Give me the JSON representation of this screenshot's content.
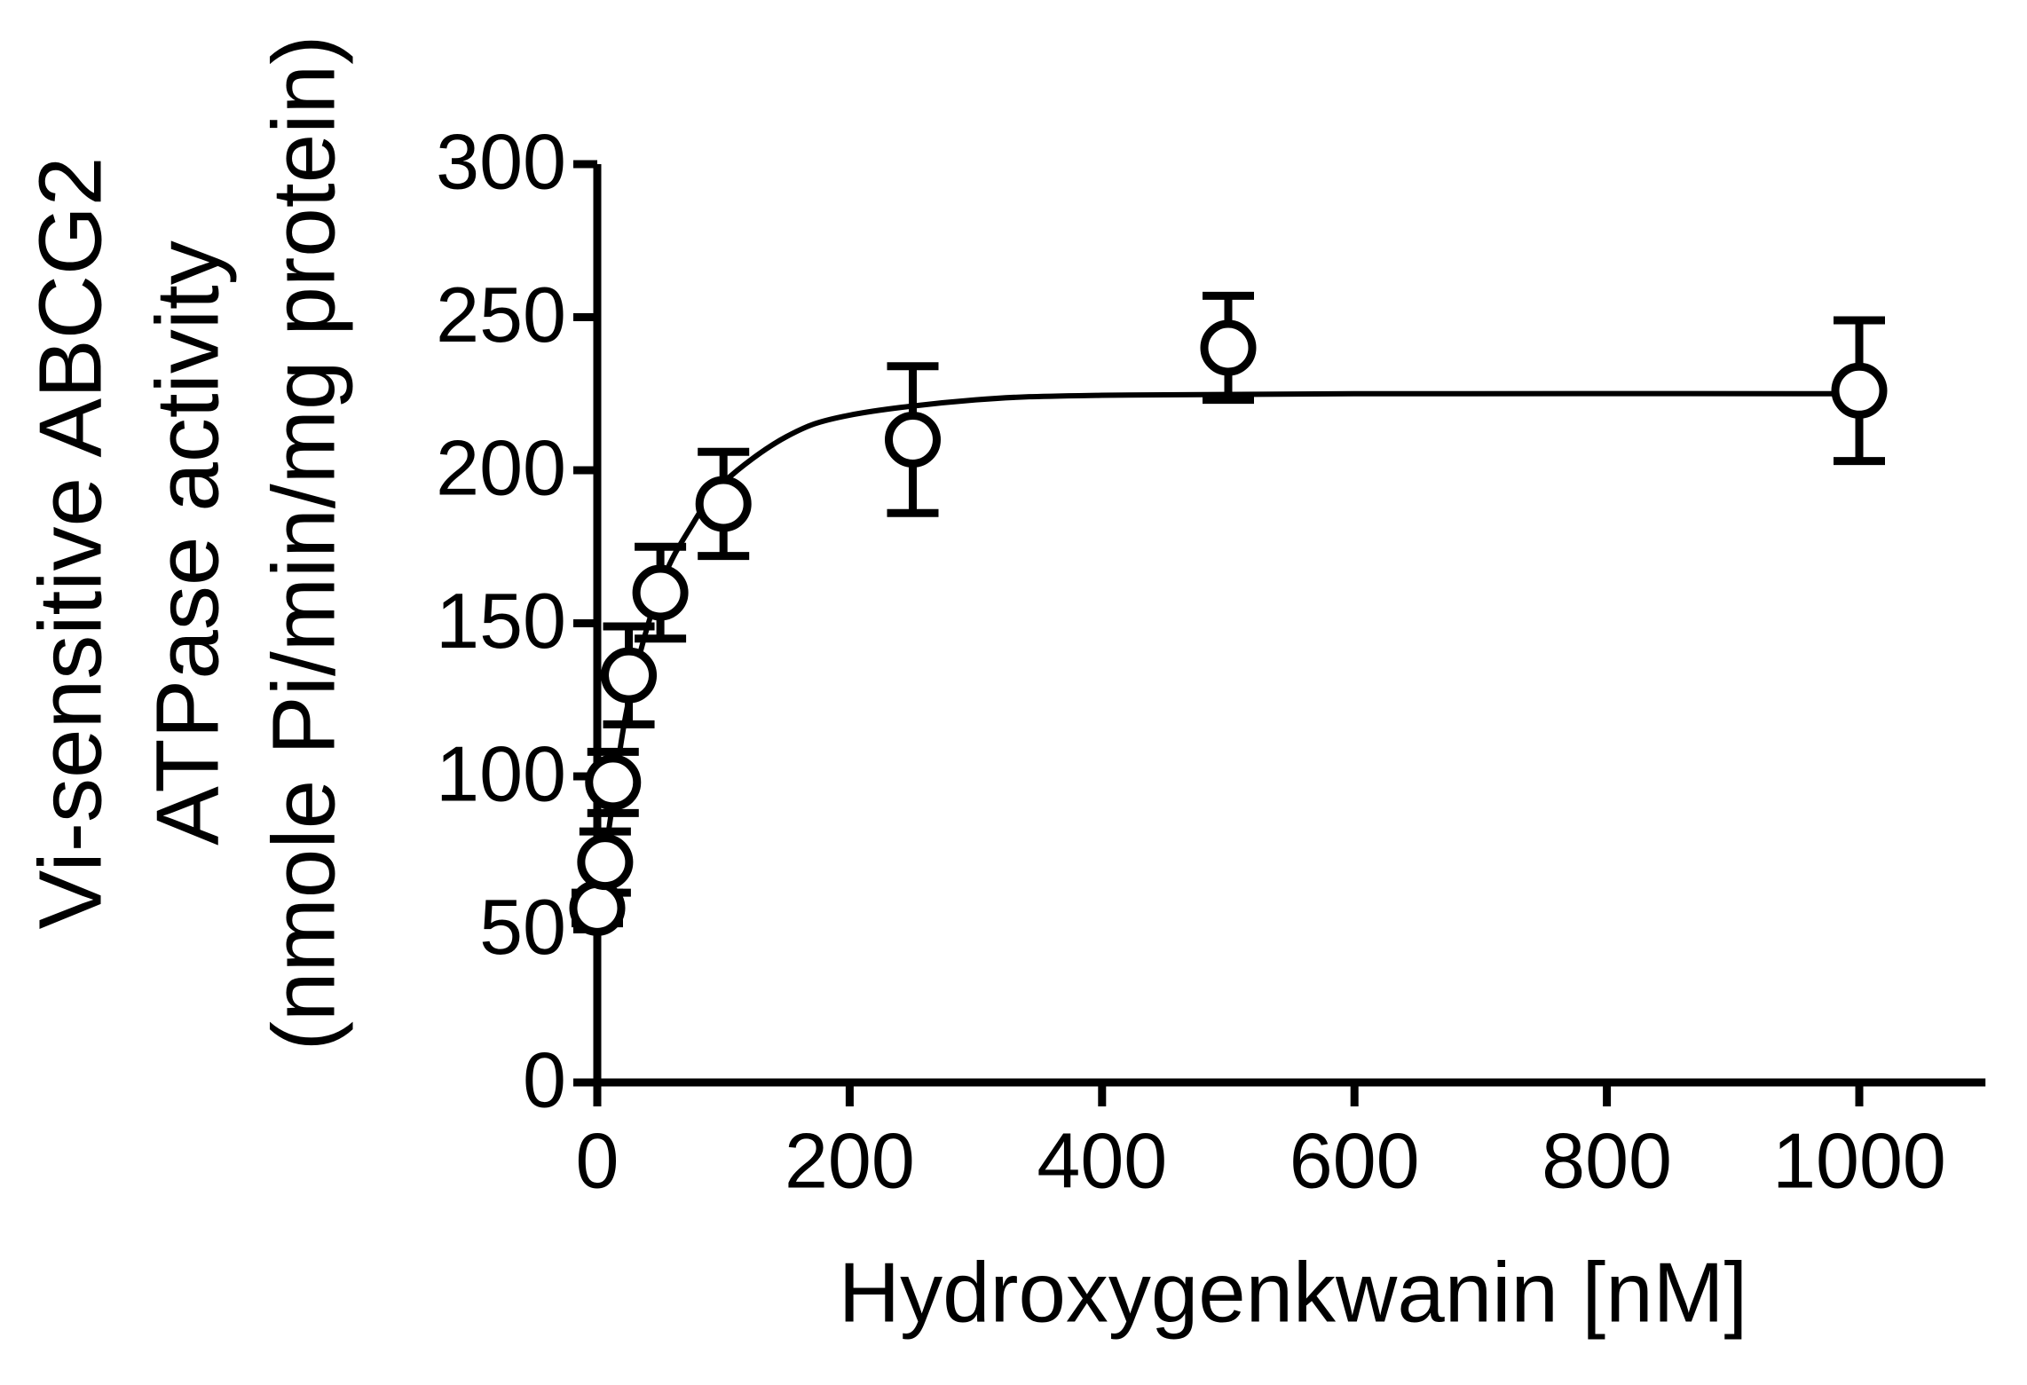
{
  "chart_data": {
    "type": "scatter",
    "x_label": "Hydroxygenkwanin [nM]",
    "y_label": [
      "Vi-sensitive ABCG2",
      "ATPase activity",
      "(nmole Pi/min/mg protein)"
    ],
    "x": [
      0,
      6.25,
      12.5,
      25,
      50,
      100,
      250,
      500,
      1000
    ],
    "series": [
      {
        "color": "#000000",
        "values": [
          57,
          72,
          98,
          133,
          160,
          189,
          210,
          240,
          226
        ],
        "errors": [
          5,
          10,
          10,
          16,
          15,
          17,
          24,
          17,
          23
        ]
      }
    ],
    "fit": {
      "x": [
        0,
        10,
        25,
        50,
        75,
        100,
        150,
        200,
        300,
        400,
        600,
        1000
      ],
      "values": [
        55,
        85,
        125,
        162,
        182,
        196,
        211,
        218,
        223,
        224.5,
        225,
        225
      ]
    },
    "xlim": [
      0,
      1100
    ],
    "ylim": [
      0,
      300
    ],
    "xticks": [
      0,
      200,
      400,
      600,
      800,
      1000
    ],
    "yticks": [
      0,
      50,
      100,
      150,
      200,
      250,
      300
    ]
  }
}
